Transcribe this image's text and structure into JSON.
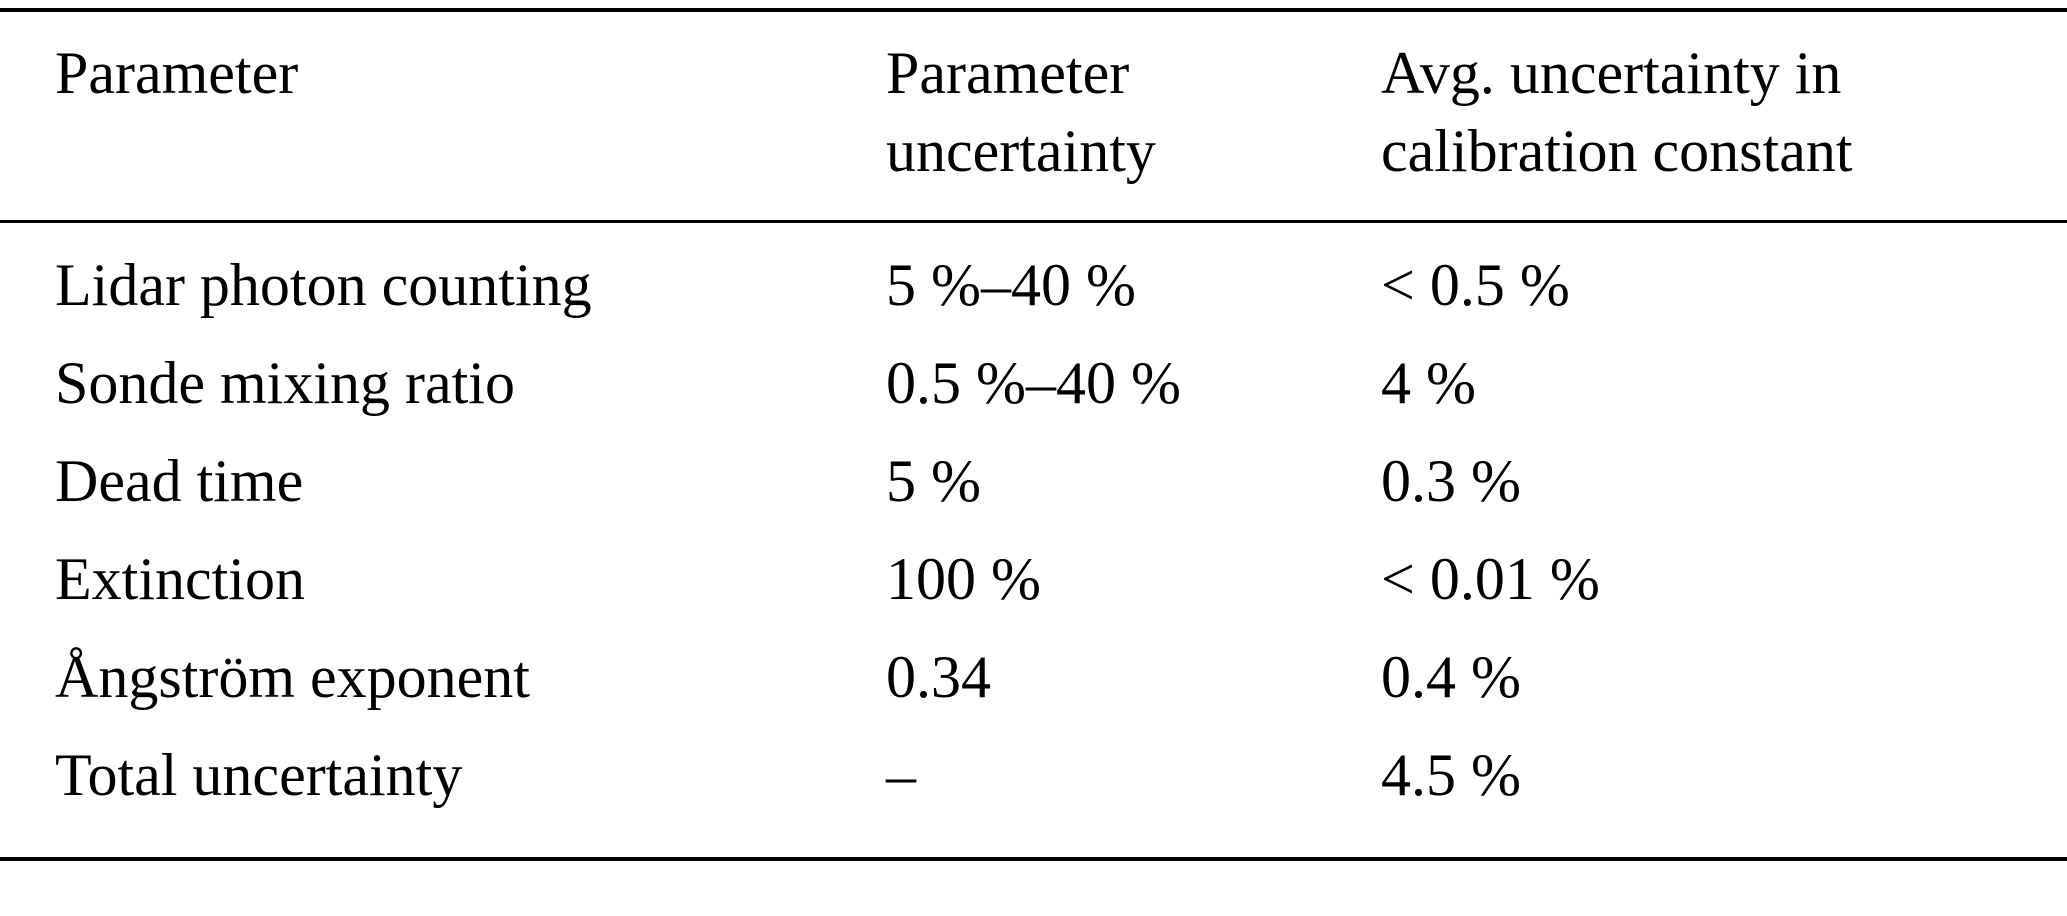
{
  "table": {
    "columns": {
      "parameter": "Parameter",
      "parameter_uncertainty": "Parameter uncertainty",
      "avg_uncertainty": "Avg. uncertainty in calibration constant"
    },
    "rows": [
      {
        "parameter": "Lidar photon counting",
        "uncertainty": "5 %–40 %",
        "calibration": "< 0.5 %"
      },
      {
        "parameter": "Sonde mixing ratio",
        "uncertainty": "0.5 %–40 %",
        "calibration": "4 %"
      },
      {
        "parameter": "Dead time",
        "uncertainty": "5 %",
        "calibration": "0.3 %"
      },
      {
        "parameter": "Extinction",
        "uncertainty": "100 %",
        "calibration": "< 0.01 %"
      },
      {
        "parameter": "Ångström exponent",
        "uncertainty": "0.34",
        "calibration": "0.4 %"
      },
      {
        "parameter": "Total uncertainty",
        "uncertainty": "–",
        "calibration": "4.5 %"
      }
    ]
  }
}
